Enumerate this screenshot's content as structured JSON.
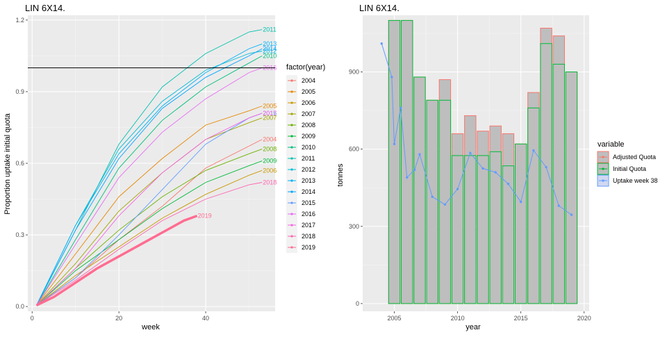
{
  "chart_data": [
    {
      "type": "line",
      "title": "LIN 6X14.",
      "xlabel": "week",
      "ylabel": "Proportion uptake initial quota",
      "xlim": [
        -1,
        56
      ],
      "ylim": [
        -0.02,
        1.22
      ],
      "xticks": [
        0,
        20,
        40
      ],
      "yticks": [
        0.0,
        0.3,
        0.6,
        0.9,
        1.2
      ],
      "ytick_labels": [
        "0.0",
        "0.3",
        "0.6",
        "0.9",
        "1.2"
      ],
      "reference_line": 1.0,
      "legend_title": "factor(year)",
      "legend_position": "right",
      "series": [
        {
          "name": "2004",
          "color": "#F8766D",
          "end_label": "2004",
          "points": [
            [
              1,
              0.005
            ],
            [
              10,
              0.12
            ],
            [
              20,
              0.28
            ],
            [
              30,
              0.42
            ],
            [
              40,
              0.58
            ],
            [
              53,
              0.7
            ]
          ]
        },
        {
          "name": "2005",
          "color": "#E58700",
          "end_label": "2005",
          "points": [
            [
              1,
              0.005
            ],
            [
              10,
              0.22
            ],
            [
              20,
              0.46
            ],
            [
              30,
              0.62
            ],
            [
              40,
              0.76
            ],
            [
              50,
              0.82
            ],
            [
              53,
              0.84
            ]
          ]
        },
        {
          "name": "2006",
          "color": "#C99800",
          "end_label": "2006",
          "points": [
            [
              1,
              0.005
            ],
            [
              10,
              0.13
            ],
            [
              20,
              0.25
            ],
            [
              30,
              0.37
            ],
            [
              40,
              0.47
            ],
            [
              50,
              0.55
            ],
            [
              53,
              0.57
            ]
          ]
        },
        {
          "name": "2007",
          "color": "#A3A500",
          "end_label": "2007",
          "points": [
            [
              1,
              0.005
            ],
            [
              10,
              0.18
            ],
            [
              20,
              0.4
            ],
            [
              30,
              0.56
            ],
            [
              40,
              0.7
            ],
            [
              50,
              0.77
            ],
            [
              53,
              0.79
            ]
          ]
        },
        {
          "name": "2008",
          "color": "#6BB100",
          "end_label": "2008",
          "points": [
            [
              1,
              0.005
            ],
            [
              10,
              0.16
            ],
            [
              20,
              0.32
            ],
            [
              30,
              0.46
            ],
            [
              40,
              0.57
            ],
            [
              50,
              0.64
            ],
            [
              53,
              0.66
            ]
          ]
        },
        {
          "name": "2009",
          "color": "#00BA38",
          "end_label": "2009",
          "points": [
            [
              1,
              0.005
            ],
            [
              10,
              0.15
            ],
            [
              20,
              0.28
            ],
            [
              30,
              0.41
            ],
            [
              40,
              0.52
            ],
            [
              50,
              0.59
            ],
            [
              53,
              0.61
            ]
          ]
        },
        {
          "name": "2010",
          "color": "#00BF7D",
          "end_label": "2010",
          "points": [
            [
              1,
              0.005
            ],
            [
              10,
              0.28
            ],
            [
              20,
              0.58
            ],
            [
              30,
              0.78
            ],
            [
              40,
              0.92
            ],
            [
              50,
              1.02
            ],
            [
              53,
              1.05
            ]
          ]
        },
        {
          "name": "2011",
          "color": "#00C0AF",
          "end_label": "2011",
          "points": [
            [
              1,
              0.005
            ],
            [
              10,
              0.32
            ],
            [
              20,
              0.68
            ],
            [
              30,
              0.92
            ],
            [
              40,
              1.06
            ],
            [
              50,
              1.15
            ],
            [
              53,
              1.16
            ]
          ]
        },
        {
          "name": "2012",
          "color": "#00BCD8",
          "end_label": "2012",
          "points": [
            [
              1,
              0.005
            ],
            [
              10,
              0.34
            ],
            [
              20,
              0.66
            ],
            [
              30,
              0.86
            ],
            [
              40,
              0.99
            ],
            [
              50,
              1.06
            ],
            [
              53,
              1.07
            ]
          ]
        },
        {
          "name": "2013",
          "color": "#00B0F6",
          "end_label": "2013",
          "points": [
            [
              1,
              0.005
            ],
            [
              10,
              0.34
            ],
            [
              20,
              0.64
            ],
            [
              30,
              0.84
            ],
            [
              40,
              0.98
            ],
            [
              50,
              1.08
            ],
            [
              53,
              1.1
            ]
          ]
        },
        {
          "name": "2014",
          "color": "#00A5FF",
          "end_label": "2014",
          "points": [
            [
              1,
              0.005
            ],
            [
              10,
              0.32
            ],
            [
              20,
              0.62
            ],
            [
              30,
              0.83
            ],
            [
              40,
              0.96
            ],
            [
              50,
              1.05
            ],
            [
              53,
              1.08
            ]
          ]
        },
        {
          "name": "2015",
          "color": "#619CFF",
          "end_label": "2015",
          "points": [
            [
              1,
              0.005
            ],
            [
              10,
              0.12
            ],
            [
              20,
              0.3
            ],
            [
              30,
              0.49
            ],
            [
              40,
              0.68
            ],
            [
              50,
              0.79
            ],
            [
              53,
              0.81
            ]
          ]
        },
        {
          "name": "2016",
          "color": "#E76BF3",
          "end_label": "2016",
          "points": [
            [
              1,
              0.005
            ],
            [
              10,
              0.26
            ],
            [
              20,
              0.54
            ],
            [
              30,
              0.73
            ],
            [
              40,
              0.87
            ],
            [
              50,
              0.98
            ],
            [
              53,
              1.0
            ]
          ]
        },
        {
          "name": "2017",
          "color": "#F564E3",
          "end_label": "2017",
          "points": [
            [
              1,
              0.005
            ],
            [
              10,
              0.16
            ],
            [
              20,
              0.38
            ],
            [
              30,
              0.56
            ],
            [
              40,
              0.7
            ],
            [
              50,
              0.79
            ],
            [
              53,
              0.81
            ]
          ]
        },
        {
          "name": "2018",
          "color": "#FF64B0",
          "end_label": "2018",
          "points": [
            [
              1,
              0.005
            ],
            [
              10,
              0.11
            ],
            [
              20,
              0.24
            ],
            [
              30,
              0.36
            ],
            [
              40,
              0.45
            ],
            [
              50,
              0.51
            ],
            [
              53,
              0.52
            ]
          ]
        },
        {
          "name": "2019",
          "color": "#FF6C91",
          "end_label": "2019",
          "thick": true,
          "points": [
            [
              1,
              0.005
            ],
            [
              5,
              0.04
            ],
            [
              10,
              0.1
            ],
            [
              15,
              0.16
            ],
            [
              20,
              0.21
            ],
            [
              25,
              0.26
            ],
            [
              30,
              0.31
            ],
            [
              35,
              0.36
            ],
            [
              38,
              0.38
            ]
          ]
        }
      ]
    },
    {
      "type": "bar",
      "title": "LIN 6X14.",
      "xlabel": "year",
      "ylabel": "tonnes",
      "xlim": [
        2002.5,
        2020.4
      ],
      "ylim": [
        -30,
        1120
      ],
      "xticks": [
        2005,
        2010,
        2015,
        2020
      ],
      "yticks": [
        0,
        300,
        600,
        900
      ],
      "legend_title": "variable",
      "legend_position": "right",
      "categories": [
        2004,
        2005,
        2006,
        2007,
        2008,
        2009,
        2010,
        2011,
        2012,
        2013,
        2014,
        2015,
        2016,
        2017,
        2018,
        2019
      ],
      "series": [
        {
          "name": "Adjusted Quota",
          "color": "#F8766D",
          "values": [
            null,
            1100,
            1100,
            880,
            790,
            870,
            660,
            730,
            670,
            690,
            660,
            620,
            820,
            1070,
            1040,
            900
          ]
        },
        {
          "name": "Initial Quota",
          "color": "#00BA38",
          "values": [
            null,
            1100,
            1100,
            880,
            790,
            790,
            575,
            575,
            575,
            590,
            535,
            620,
            760,
            1010,
            930,
            900
          ]
        },
        {
          "name": "Uptake week 38",
          "color": "#619CFF",
          "values": [
            1010,
            620,
            490,
            580,
            415,
            385,
            445,
            585,
            525,
            510,
            465,
            395,
            595,
            530,
            380,
            345
          ]
        }
      ],
      "extra_points": [
        {
          "x": 2004.8,
          "y": 880
        },
        {
          "x": 2005.5,
          "y": 760
        },
        {
          "x": 2006.6,
          "y": 520
        }
      ]
    }
  ]
}
